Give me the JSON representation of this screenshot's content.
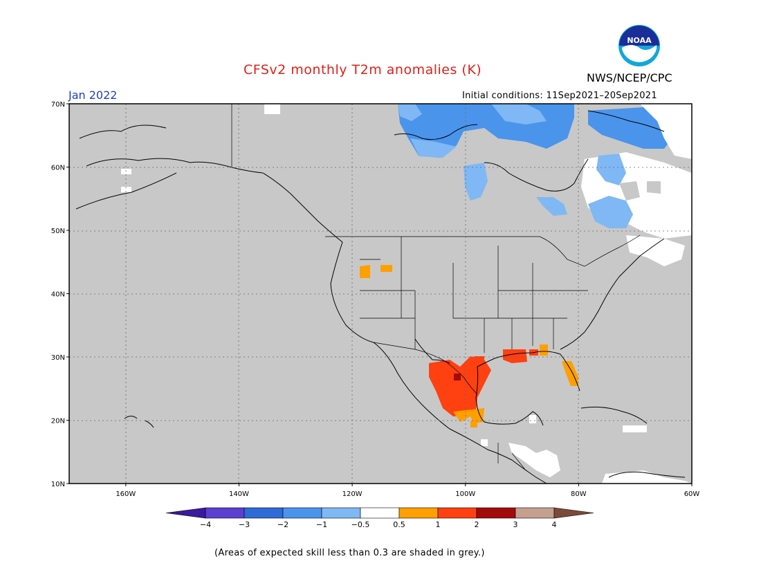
{
  "title": "CFSv2 monthly T2m anomalies (K)",
  "agency": "NWS/NCEP/CPC",
  "logo_text": "NOAA",
  "target_month": "Jan 2022",
  "initial_conditions": "Initial conditions: 11Sep2021–20Sep2021",
  "footer": "(Areas of expected skill less than 0.3 are shaded in grey.)",
  "map": {
    "lat_labels": [
      "70N",
      "60N",
      "50N",
      "40N",
      "30N",
      "20N",
      "10N"
    ],
    "lat_values": [
      70,
      60,
      50,
      40,
      30,
      20,
      10
    ],
    "lon_labels": [
      "160W",
      "140W",
      "120W",
      "100W",
      "80W",
      "60W"
    ],
    "lon_values": [
      -160,
      -140,
      -120,
      -100,
      -80,
      -60
    ],
    "lon_range": [
      -170,
      -60
    ],
    "lat_range": [
      10,
      70
    ],
    "background_color": "#c8c8c8",
    "gridlines": true
  },
  "colorbar": {
    "labels": [
      "−4",
      "−3",
      "−2",
      "−1",
      "−0.5",
      "0.5",
      "1",
      "2",
      "3",
      "4"
    ],
    "colors": [
      "#3a1a9e",
      "#5b3fd0",
      "#2e6bd6",
      "#4a94ec",
      "#7fb8f4",
      "#ffffff",
      "#ff9f00",
      "#ff4010",
      "#a30b0b",
      "#c5a08f",
      "#7a4a3a"
    ]
  },
  "anomaly_regions": [
    {
      "name": "northern-canada-cold",
      "color": "#4a94ec",
      "category": "-2 to -1"
    },
    {
      "name": "hudson-bay-cool",
      "color": "#7fb8f4",
      "category": "-1 to -0.5"
    },
    {
      "name": "quebec-labrador-neutral",
      "color": "#ffffff",
      "category": "-0.5 to 0.5"
    },
    {
      "name": "mexico-texas-warm",
      "color": "#ff4010",
      "category": "1 to 2"
    },
    {
      "name": "mexico-core-hot",
      "color": "#a30b0b",
      "category": "2 to 3"
    },
    {
      "name": "florida-gulf-warm",
      "color": "#ff9f00",
      "category": "0.5 to 1"
    },
    {
      "name": "idaho-warm",
      "color": "#ff9f00",
      "category": "0.5 to 1"
    }
  ]
}
